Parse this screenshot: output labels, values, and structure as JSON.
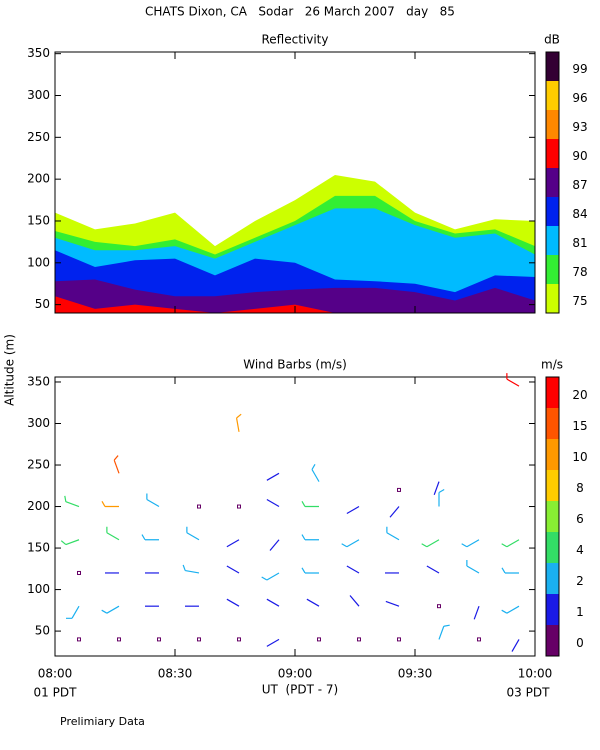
{
  "title": "CHATS Dixon, CA   Sodar   26 March 2007   day   85",
  "y_label": "Altitude (m)",
  "x_axis": {
    "label": "UT  (PDT - 7)",
    "start_label": "01 PDT",
    "end_label": "03 PDT",
    "xlim": [
      "08:00",
      "10:00"
    ],
    "xticks": [
      "08:00",
      "08:30",
      "09:00",
      "09:30",
      "10:00"
    ]
  },
  "footnote": "Prelimiary Data",
  "chart_data": [
    {
      "type": "filled_contour",
      "title": "Reflectivity",
      "x": [
        "08:00",
        "08:10",
        "08:20",
        "08:30",
        "08:40",
        "08:50",
        "09:00",
        "09:10",
        "09:20",
        "09:30",
        "09:40",
        "09:50",
        "10:00"
      ],
      "ylim": [
        40,
        352
      ],
      "yticks": [
        50,
        100,
        150,
        200,
        250,
        300,
        350
      ],
      "series": [
        {
          "color": "#ccff00",
          "values": [
            160,
            140,
            147,
            160,
            120,
            150,
            175,
            205,
            197,
            160,
            140,
            152,
            150
          ]
        },
        {
          "color": "#33ee33",
          "values": [
            138,
            125,
            120,
            128,
            110,
            130,
            150,
            180,
            180,
            150,
            135,
            140,
            120
          ]
        },
        {
          "color": "#00bbff",
          "values": [
            130,
            115,
            115,
            120,
            105,
            125,
            145,
            165,
            165,
            145,
            130,
            135,
            110
          ]
        },
        {
          "color": "#0022ee",
          "values": [
            115,
            95,
            103,
            105,
            85,
            105,
            100,
            80,
            78,
            75,
            65,
            85,
            83
          ]
        },
        {
          "color": "#550088",
          "values": [
            78,
            80,
            68,
            60,
            60,
            65,
            68,
            70,
            70,
            65,
            55,
            70,
            55
          ]
        },
        {
          "color": "#ff0000",
          "values": [
            60,
            45,
            50,
            45,
            40,
            45,
            50,
            40,
            40,
            40,
            40,
            40,
            40
          ]
        }
      ],
      "colorbar": {
        "label": "dB",
        "levels": [
          75,
          78,
          81,
          84,
          87,
          90,
          93,
          96,
          99
        ],
        "colors": [
          "#ccff00",
          "#33ee33",
          "#00bbff",
          "#0022ee",
          "#550088",
          "#ff0000",
          "#ff8800",
          "#ffcc00",
          "#330033"
        ]
      }
    },
    {
      "type": "wind_barbs",
      "title": "Wind Barbs (m/s)",
      "ylim": [
        20,
        356
      ],
      "yticks": [
        50,
        100,
        150,
        200,
        250,
        300,
        350
      ],
      "columns": [
        {
          "time": "08:06",
          "altitude": [
            40,
            80,
            120,
            160,
            200
          ],
          "speed": [
            0.3,
            2.5,
            0.3,
            4,
            5
          ],
          "direction": [
            0,
            210,
            0,
            250,
            290
          ]
        },
        {
          "time": "08:16",
          "altitude": [
            40,
            80,
            120,
            160,
            200,
            240
          ],
          "speed": [
            0.3,
            2.5,
            1.5,
            4.5,
            10,
            16
          ],
          "direction": [
            0,
            240,
            270,
            300,
            270,
            340
          ]
        },
        {
          "time": "08:26",
          "altitude": [
            40,
            80,
            120,
            160,
            200
          ],
          "speed": [
            0.3,
            1.5,
            1.5,
            2.5,
            3
          ],
          "direction": [
            0,
            270,
            270,
            270,
            300
          ]
        },
        {
          "time": "08:36",
          "altitude": [
            40,
            80,
            120,
            160,
            200
          ],
          "speed": [
            0.3,
            1.5,
            2.5,
            3,
            0.3
          ],
          "direction": [
            0,
            270,
            280,
            300,
            0
          ]
        },
        {
          "time": "08:46",
          "altitude": [
            40,
            80,
            120,
            160,
            200,
            290
          ],
          "speed": [
            0.3,
            1.5,
            1.5,
            1.5,
            0.3,
            12
          ],
          "direction": [
            0,
            300,
            300,
            240,
            0,
            350
          ]
        },
        {
          "time": "08:56",
          "altitude": [
            40,
            80,
            120,
            160,
            200,
            240
          ],
          "speed": [
            1.2,
            1.5,
            2.5,
            1.5,
            1.5,
            1.5
          ],
          "direction": [
            240,
            300,
            240,
            220,
            300,
            240
          ]
        },
        {
          "time": "09:06",
          "altitude": [
            40,
            80,
            120,
            160,
            200,
            230
          ],
          "speed": [
            0.3,
            1.5,
            2.5,
            3,
            5,
            2.5
          ],
          "direction": [
            0,
            300,
            270,
            270,
            270,
            330
          ]
        },
        {
          "time": "09:16",
          "altitude": [
            40,
            80,
            120,
            160,
            200
          ],
          "speed": [
            0.3,
            1.5,
            1.5,
            3,
            1.5
          ],
          "direction": [
            0,
            320,
            300,
            240,
            240
          ]
        },
        {
          "time": "09:26",
          "altitude": [
            40,
            80,
            120,
            160,
            200,
            220
          ],
          "speed": [
            0.3,
            1.5,
            1.5,
            2.5,
            1.5,
            0.3
          ],
          "direction": [
            0,
            290,
            270,
            300,
            220,
            0
          ]
        },
        {
          "time": "09:36",
          "altitude": [
            40,
            80,
            120,
            160,
            200,
            230
          ],
          "speed": [
            2.5,
            0.3,
            1.5,
            4,
            2.5,
            1.5
          ],
          "direction": [
            20,
            0,
            300,
            240,
            0,
            200
          ]
        },
        {
          "time": "09:46",
          "altitude": [
            40,
            80,
            120,
            160
          ],
          "speed": [
            0.3,
            1.5,
            2.5,
            3
          ],
          "direction": [
            0,
            200,
            300,
            240
          ]
        },
        {
          "time": "09:56",
          "altitude": [
            40,
            80,
            120,
            160,
            345
          ],
          "speed": [
            1.5,
            2.5,
            3,
            5,
            22
          ],
          "direction": [
            210,
            240,
            270,
            240,
            300
          ]
        }
      ],
      "colorbar": {
        "label": "m/s",
        "levels": [
          0,
          1,
          2,
          4,
          6,
          8,
          10,
          15,
          20
        ],
        "colors": [
          "#660066",
          "#1a1ae6",
          "#1ab0f0",
          "#33dd66",
          "#88ee33",
          "#ffcc00",
          "#ff9900",
          "#ff5500",
          "#ff0000"
        ]
      }
    }
  ]
}
